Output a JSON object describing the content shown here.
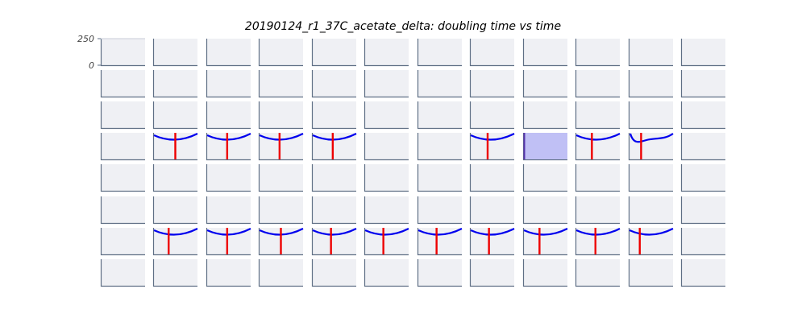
{
  "chart_data": {
    "type": "line",
    "title": "20190124_r1_37C_acetate_delta: doubling time vs time",
    "grid": {
      "rows": 8,
      "cols": 12
    },
    "ylim": [
      0,
      250
    ],
    "yticks": [
      {
        "value": 250,
        "label": "250"
      },
      {
        "value": 0,
        "label": "0"
      }
    ],
    "colors": {
      "panel_bg": "#eff0f4",
      "axis": "#5f6f85",
      "curve": "#0000ee",
      "marker": "#ee0000",
      "shade": "#c0c0f5",
      "shade_edge": "#5533aa"
    },
    "curves": [
      {
        "row": 3,
        "col": 1,
        "shape": "u",
        "marker": 0.5
      },
      {
        "row": 3,
        "col": 2,
        "shape": "u",
        "marker": 0.47
      },
      {
        "row": 3,
        "col": 3,
        "shape": "u",
        "marker": 0.47
      },
      {
        "row": 3,
        "col": 4,
        "shape": "u",
        "marker": 0.47
      },
      {
        "row": 3,
        "col": 7,
        "shape": "u",
        "marker": 0.4
      },
      {
        "row": 3,
        "col": 9,
        "shape": "u",
        "marker": 0.37
      },
      {
        "row": 3,
        "col": 10,
        "shape": "hook",
        "marker": 0.28
      },
      {
        "row": 6,
        "col": 1,
        "shape": "u",
        "marker": 0.35
      },
      {
        "row": 6,
        "col": 2,
        "shape": "u",
        "marker": 0.47
      },
      {
        "row": 6,
        "col": 3,
        "shape": "u",
        "marker": 0.5
      },
      {
        "row": 6,
        "col": 4,
        "shape": "u",
        "marker": 0.43
      },
      {
        "row": 6,
        "col": 5,
        "shape": "u",
        "marker": 0.43
      },
      {
        "row": 6,
        "col": 6,
        "shape": "u",
        "marker": 0.43
      },
      {
        "row": 6,
        "col": 7,
        "shape": "u",
        "marker": 0.43
      },
      {
        "row": 6,
        "col": 8,
        "shape": "u",
        "marker": 0.37
      },
      {
        "row": 6,
        "col": 9,
        "shape": "u",
        "marker": 0.45
      },
      {
        "row": 6,
        "col": 10,
        "shape": "u",
        "marker": 0.25
      }
    ],
    "shaded": [
      {
        "row": 3,
        "col": 8
      }
    ],
    "faint_lines": [
      {
        "row": 0,
        "col": 0,
        "value": 250
      }
    ]
  }
}
